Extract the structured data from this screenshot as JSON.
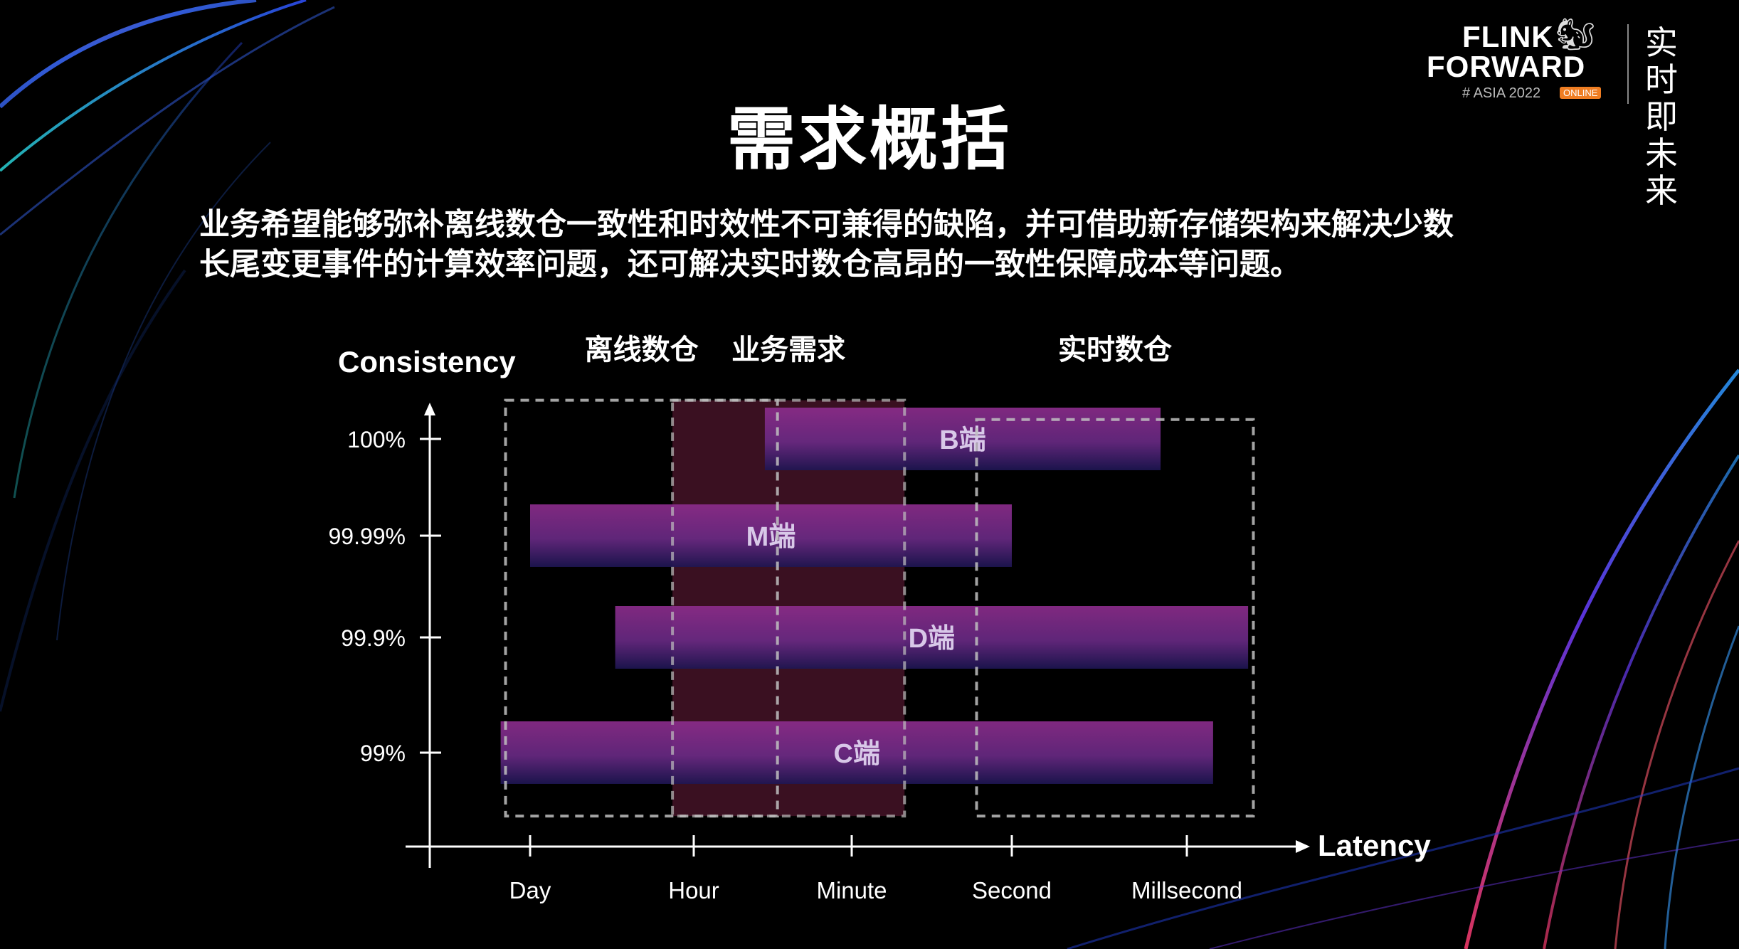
{
  "logo": {
    "line1": "FLINK",
    "line2": "FORWARD",
    "line3": "# ASIA 2022",
    "badge": "ONLINE",
    "slogan": "实时即未来"
  },
  "page": {
    "title": "需求概括",
    "description_line1": "业务希望能够弥补离线数仓一致性和时效性不可兼得的缺陷，并可借助新存储架构来解决少数",
    "description_line2": "长尾变更事件的计算效率问题，还可解决实时数仓高昂的一致性保障成本等问题。"
  },
  "chart_data": {
    "type": "range-bar",
    "ylabel": "Consistency",
    "xlabel": "Latency",
    "x_categories": [
      "Day",
      "Hour",
      "Minute",
      "Second",
      "Millsecond"
    ],
    "y_categories": [
      "99%",
      "99.9%",
      "99.99%",
      "100%"
    ],
    "regions": [
      {
        "label": "离线数仓",
        "x_start": -0.15,
        "x_end": 1.53,
        "y_top": 3.4,
        "y_bottom": -0.55,
        "style": "dashed"
      },
      {
        "label": "业务需求",
        "x_start": 0.87,
        "x_end": 2.33,
        "y_top": 3.4,
        "y_bottom": -0.55,
        "style": "filled"
      },
      {
        "label": "实时数仓",
        "x_start": 2.78,
        "x_end": 4.38,
        "y_top": 3.2,
        "y_bottom": -0.55,
        "style": "dashed"
      }
    ],
    "bars": [
      {
        "label": "B端",
        "y": "100%",
        "x_start": 1.45,
        "x_end": 3.85
      },
      {
        "label": "M端",
        "y": "99.99%",
        "x_start": 0.0,
        "x_end": 3.0
      },
      {
        "label": "D端",
        "y": "99.9%",
        "x_start": 0.52,
        "x_end": 4.35
      },
      {
        "label": "C端",
        "y": "99%",
        "x_start": -0.18,
        "x_end": 4.15
      }
    ],
    "colors": {
      "bar_top": "#8e2d8e",
      "bar_bottom": "#1e1654",
      "region_fill": "#6a1e3c",
      "dash": "#bfbfbf"
    }
  }
}
